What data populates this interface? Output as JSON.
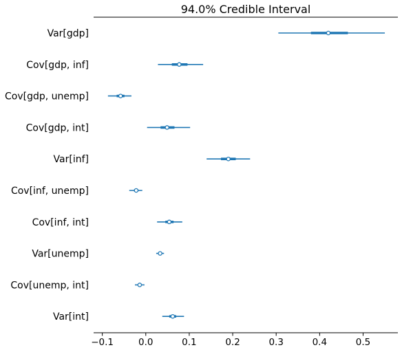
{
  "chart_data": {
    "type": "forest",
    "title": "94.0% Credible Interval",
    "xlim": [
      -0.12,
      0.58
    ],
    "xticks": [
      -0.1,
      0.0,
      0.1,
      0.2,
      0.3,
      0.4,
      0.5
    ],
    "xtick_labels": [
      "−0.1",
      "0.0",
      "0.1",
      "0.2",
      "0.3",
      "0.4",
      "0.5"
    ],
    "grid": false,
    "color": "#1f77b4",
    "rows": [
      {
        "label": "Var[gdp]",
        "mean": 0.42,
        "hdi_low": 0.305,
        "hdi_high": 0.55,
        "iqr_low": 0.38,
        "iqr_high": 0.465
      },
      {
        "label": "Cov[gdp, inf]",
        "mean": 0.077,
        "hdi_low": 0.028,
        "hdi_high": 0.132,
        "iqr_low": 0.06,
        "iqr_high": 0.096
      },
      {
        "label": "Cov[gdp, unemp]",
        "mean": -0.058,
        "hdi_low": -0.087,
        "hdi_high": -0.033,
        "iqr_low": -0.067,
        "iqr_high": -0.049
      },
      {
        "label": "Cov[gdp, int]",
        "mean": 0.049,
        "hdi_low": 0.003,
        "hdi_high": 0.102,
        "iqr_low": 0.034,
        "iqr_high": 0.066
      },
      {
        "label": "Var[inf]",
        "mean": 0.19,
        "hdi_low": 0.14,
        "hdi_high": 0.24,
        "iqr_low": 0.173,
        "iqr_high": 0.207
      },
      {
        "label": "Cov[inf, unemp]",
        "mean": -0.022,
        "hdi_low": -0.038,
        "hdi_high": -0.008,
        "iqr_low": -0.027,
        "iqr_high": -0.017
      },
      {
        "label": "Cov[inf, int]",
        "mean": 0.054,
        "hdi_low": 0.026,
        "hdi_high": 0.084,
        "iqr_low": 0.045,
        "iqr_high": 0.064
      },
      {
        "label": "Var[unemp]",
        "mean": 0.033,
        "hdi_low": 0.024,
        "hdi_high": 0.042,
        "iqr_low": 0.03,
        "iqr_high": 0.036
      },
      {
        "label": "Cov[unemp, int]",
        "mean": -0.014,
        "hdi_low": -0.025,
        "hdi_high": -0.003,
        "iqr_low": -0.018,
        "iqr_high": -0.01
      },
      {
        "label": "Var[int]",
        "mean": 0.062,
        "hdi_low": 0.038,
        "hdi_high": 0.088,
        "iqr_low": 0.054,
        "iqr_high": 0.07
      }
    ]
  }
}
